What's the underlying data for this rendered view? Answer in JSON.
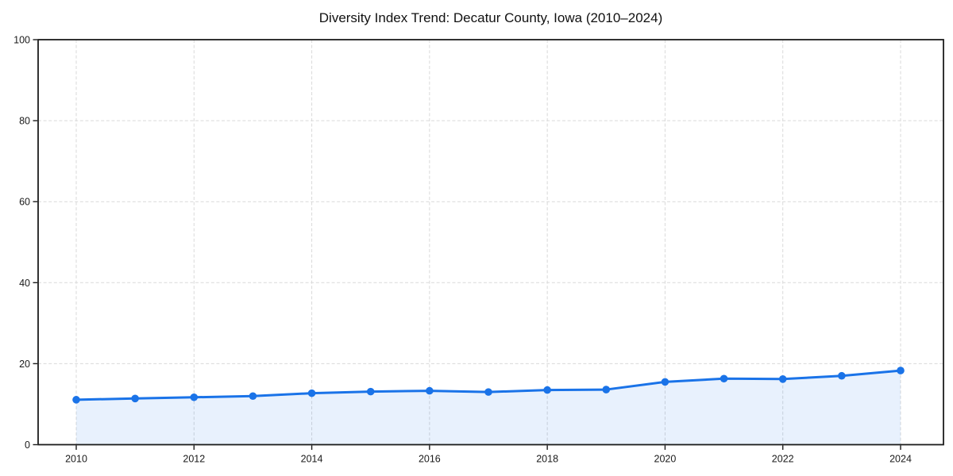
{
  "title": "Diversity Index Trend: Decatur County, Iowa (2010–2024)",
  "colors": {
    "background": "#ffffff",
    "line": "#1a73e8",
    "area_fill": "rgba(26,115,232,0.10)",
    "grid": "#d9d9d9",
    "axis": "#1c1c1c",
    "text": "#1a1a1a"
  },
  "chart_data": {
    "type": "line",
    "title": "Diversity Index Trend: Decatur County, Iowa (2010–2024)",
    "series_name": "Diversity Index",
    "x": [
      2010,
      2011,
      2012,
      2013,
      2014,
      2015,
      2016,
      2017,
      2018,
      2019,
      2020,
      2021,
      2022,
      2023,
      2024
    ],
    "values": [
      11.1,
      11.4,
      11.7,
      12.0,
      12.7,
      13.1,
      13.3,
      13.0,
      13.5,
      13.6,
      15.5,
      16.3,
      16.2,
      17.0,
      18.3
    ],
    "xlabel": "",
    "ylabel": "",
    "xlim": [
      2010,
      2024
    ],
    "ylim": [
      0,
      100
    ],
    "x_ticks": [
      2010,
      2012,
      2014,
      2016,
      2018,
      2020,
      2022,
      2024
    ],
    "y_ticks": [
      0,
      20,
      40,
      60,
      80,
      100
    ],
    "grid": true,
    "grid_style": "dashed",
    "legend": false,
    "marker": "circle",
    "area_fill": true
  }
}
